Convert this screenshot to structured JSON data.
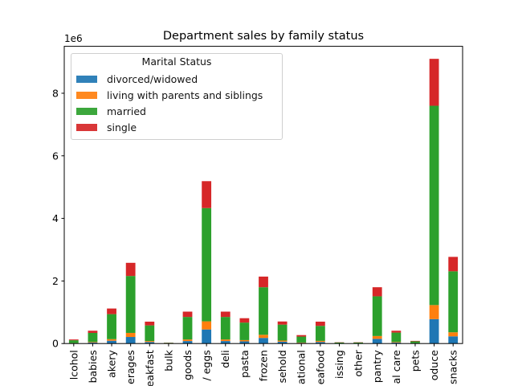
{
  "chart_data": {
    "type": "bar",
    "stacked": true,
    "title": "Department sales by family status",
    "xlabel": "",
    "ylabel": "",
    "offset_text": "1e6",
    "scale_multiplier": 1000000,
    "ylim": [
      0,
      9.5
    ],
    "yticks": [
      0,
      2,
      4,
      6,
      8
    ],
    "categories": [
      "alcohol",
      "babies",
      "bakery",
      "beverages",
      "breakfast",
      "bulk",
      "canned goods",
      "dairy eggs",
      "deli",
      "dry goods pasta",
      "frozen",
      "household",
      "international",
      "meat seafood",
      "missing",
      "other",
      "pantry",
      "personal care",
      "pets",
      "produce",
      "snacks"
    ],
    "tick_labels_visible": [
      "lcohol",
      "babies",
      "akery",
      "erages",
      "eakfast",
      "bulk",
      "goods",
      "/ eggs",
      "deli",
      "pasta",
      "frozen",
      "sehold",
      "ational",
      "eafood",
      "issing",
      "other",
      "pantry",
      "al care",
      "pets",
      "oduce",
      "snacks"
    ],
    "series": [
      {
        "name": "divorced/widowed",
        "color": "#1f77b4",
        "values": [
          0.01,
          0.03,
          0.09,
          0.21,
          0.05,
          0.002,
          0.08,
          0.45,
          0.08,
          0.07,
          0.18,
          0.06,
          0.02,
          0.05,
          0.003,
          0.003,
          0.15,
          0.03,
          0.006,
          0.78,
          0.23
        ]
      },
      {
        "name": "living with parents and siblings",
        "color": "#ff7f0e",
        "values": [
          0.005,
          0.02,
          0.05,
          0.13,
          0.03,
          0.001,
          0.05,
          0.26,
          0.05,
          0.04,
          0.1,
          0.035,
          0.012,
          0.035,
          0.002,
          0.002,
          0.09,
          0.02,
          0.004,
          0.45,
          0.13
        ]
      },
      {
        "name": "married",
        "color": "#2ca02c",
        "values": [
          0.09,
          0.29,
          0.8,
          1.82,
          0.5,
          0.02,
          0.72,
          3.62,
          0.72,
          0.56,
          1.52,
          0.51,
          0.19,
          0.48,
          0.03,
          0.03,
          1.27,
          0.3,
          0.06,
          6.37,
          1.95
        ]
      },
      {
        "name": "single",
        "color": "#d62728",
        "values": [
          0.025,
          0.07,
          0.18,
          0.42,
          0.12,
          0.005,
          0.17,
          0.86,
          0.17,
          0.14,
          0.34,
          0.1,
          0.048,
          0.135,
          0.008,
          0.008,
          0.29,
          0.06,
          0.015,
          1.5,
          0.46
        ]
      }
    ],
    "legend": {
      "title": "Marital Status",
      "position": "upper left"
    },
    "grid": false
  }
}
